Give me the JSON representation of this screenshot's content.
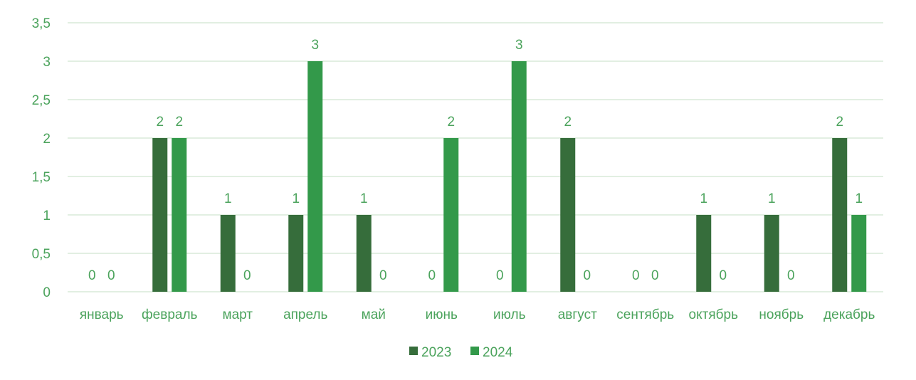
{
  "chart_data": {
    "type": "bar",
    "categories": [
      "январь",
      "февраль",
      "март",
      "апрель",
      "май",
      "июнь",
      "июль",
      "август",
      "сентябрь",
      "октябрь",
      "ноябрь",
      "декабрь"
    ],
    "series": [
      {
        "name": "2023",
        "values": [
          0,
          2,
          1,
          1,
          1,
          0,
          0,
          2,
          0,
          1,
          1,
          2
        ],
        "color": "#366d3b"
      },
      {
        "name": "2024",
        "values": [
          0,
          2,
          0,
          3,
          0,
          2,
          3,
          0,
          0,
          0,
          0,
          1
        ],
        "color": "#33994a"
      }
    ],
    "yticks": [
      "0",
      "0,5",
      "1",
      "1,5",
      "2",
      "2,5",
      "3",
      "3,5"
    ],
    "ylim": [
      0,
      3.5
    ],
    "grid": true,
    "legend_position": "bottom",
    "label_color": "#4ba35c",
    "grid_color": "#d9ead9"
  }
}
